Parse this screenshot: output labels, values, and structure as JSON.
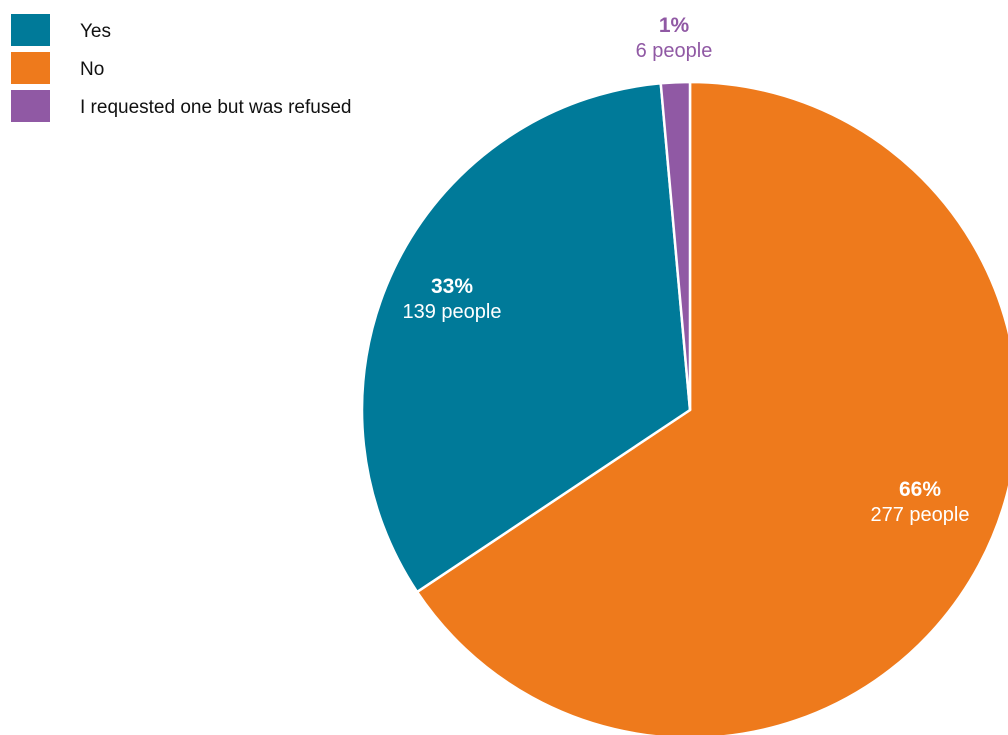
{
  "chart_data": {
    "type": "pie",
    "title": "",
    "slices": [
      {
        "label": "Yes",
        "percent_label": "33%",
        "count_label": "139 people",
        "value": 139,
        "color": "#007a99"
      },
      {
        "label": "No",
        "percent_label": "66%",
        "count_label": "277 people",
        "value": 277,
        "color": "#ee7a1c"
      },
      {
        "label": "I requested one but was refused",
        "percent_label": "1%",
        "count_label": "6 people",
        "value": 6,
        "color": "#9059a4"
      }
    ],
    "legend_position": "top-left"
  }
}
